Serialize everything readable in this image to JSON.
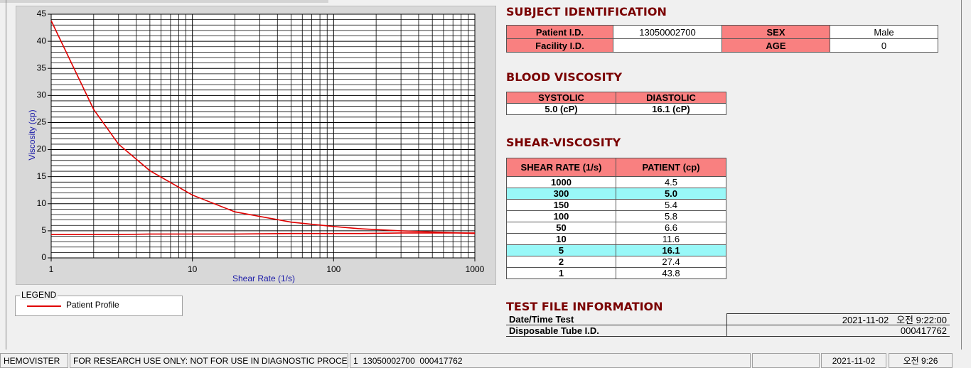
{
  "chart_data": {
    "type": "line",
    "x_label": "Shear Rate (1/s)",
    "y_label": "Viscosity (cp)",
    "xscale": "log",
    "xlim": [
      1,
      1000
    ],
    "xticks": [
      1,
      10,
      100,
      1000
    ],
    "xminorticks": [
      2,
      3,
      4,
      5,
      6,
      7,
      8,
      9,
      20,
      30,
      40,
      50,
      60,
      70,
      80,
      90,
      200,
      300,
      400,
      500,
      600,
      700,
      800,
      900
    ],
    "ylim": [
      0,
      45
    ],
    "yticks": [
      0,
      5,
      10,
      15,
      20,
      25,
      30,
      35,
      40,
      45
    ],
    "yminorticks": [
      1,
      2,
      3,
      4,
      6,
      7,
      8,
      9,
      11,
      12,
      13,
      14,
      16,
      17,
      18,
      19,
      21,
      22,
      23,
      24,
      26,
      27,
      28,
      29,
      31,
      32,
      33,
      34,
      36,
      37,
      38,
      39,
      41,
      42,
      43,
      44
    ],
    "grid": true,
    "x": [
      1,
      2,
      3,
      5,
      10,
      20,
      50,
      100,
      150,
      300,
      1000
    ],
    "series": [
      {
        "name": "Patient Profile",
        "color": "#e00000",
        "values": [
          43.8,
          27.4,
          21,
          16.1,
          11.6,
          8.5,
          6.6,
          5.8,
          5.4,
          5.0,
          4.5
        ]
      },
      {
        "color": "#e00000",
        "values": [
          4.3,
          4.3,
          4.3,
          4.4,
          4.4,
          4.4,
          4.5,
          4.5,
          4.5,
          4.6,
          4.6
        ]
      }
    ],
    "legend": {
      "title": "LEGEND"
    }
  },
  "subject_identification": {
    "title": "SUBJECT IDENTIFICATION",
    "rows": [
      [
        "Patient I.D.",
        "13050002700",
        "SEX",
        "Male"
      ],
      [
        "Facility I.D.",
        null,
        "AGE",
        "0"
      ]
    ]
  },
  "blood_viscosity": {
    "title": "BLOOD VISCOSITY",
    "headers": [
      "SYSTOLIC",
      "DIASTOLIC"
    ],
    "values": [
      "5.0 (cP)",
      "16.1 (cP)"
    ]
  },
  "shear_viscosity": {
    "title": "SHEAR-VISCOSITY",
    "headers": [
      "SHEAR RATE (1/s)",
      "PATIENT (cp)"
    ],
    "rows": [
      [
        "1000",
        "4.5"
      ],
      [
        "300",
        "5.0"
      ],
      [
        "150",
        "5.4"
      ],
      [
        "100",
        "5.8"
      ],
      [
        "50",
        "6.6"
      ],
      [
        "10",
        "11.6"
      ],
      [
        "5",
        "16.1"
      ],
      [
        "2",
        "27.4"
      ],
      [
        "1",
        "43.8"
      ]
    ],
    "highlighted_rows": [
      1,
      6
    ]
  },
  "test_file_information": {
    "title": "TEST FILE INFORMATION",
    "rows": [
      [
        "Date/Time Test",
        "2021-11-02   오전 9:22:00"
      ],
      [
        "Disposable Tube I.D.",
        "000417762"
      ]
    ]
  },
  "status_bar": [
    "HEMOVISTER",
    "FOR RESEARCH USE ONLY: NOT FOR USE IN DIAGNOSTIC PROCEDURES",
    "1  13050002700  000417762",
    "2021-11-02",
    "오전 9:26"
  ]
}
